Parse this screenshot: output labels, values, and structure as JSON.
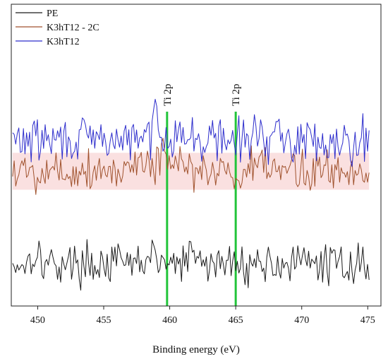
{
  "chart_data": {
    "type": "line",
    "title": "",
    "xlabel": "Binding energy (eV)",
    "ylabel": "",
    "xlim": [
      448,
      476
    ],
    "ylim": [
      0,
      100
    ],
    "y_ticks_shown": false,
    "grid": false,
    "legend_position": "top-left",
    "x_ticks": [
      450,
      455,
      460,
      465,
      470,
      475
    ],
    "x_tick_labels": [
      "450",
      "455",
      "460",
      "465",
      "470",
      "475"
    ],
    "series": [
      {
        "name": "PE",
        "color": "#1a1a1a",
        "x_start": 448.1,
        "x_end": 475.1,
        "baseline": 14,
        "noise": 3.2,
        "seed": 17,
        "features": [
          {
            "x": 449.8,
            "dy": 4
          },
          {
            "x": 458.5,
            "dy": 3
          },
          {
            "x": 461.8,
            "dy": 3
          }
        ]
      },
      {
        "name": "K3hT12 - 2C",
        "color": "#a0522d",
        "fill": "#f8d6d6",
        "x_start": 448.1,
        "x_end": 475.1,
        "baseline": 45,
        "noise": 3.6,
        "seed": 5,
        "features": [
          {
            "x": 458.0,
            "dy": 6
          },
          {
            "x": 459.5,
            "dy": 7
          },
          {
            "x": 465.2,
            "dy": -3
          }
        ]
      },
      {
        "name": "K3hT12",
        "color": "#2d2dcc",
        "x_start": 448.1,
        "x_end": 475.1,
        "baseline": 55,
        "noise": 3.6,
        "seed": 29,
        "features": [
          {
            "x": 459.0,
            "dy": 8
          },
          {
            "x": 460.5,
            "dy": 4
          },
          {
            "x": 466.8,
            "dy": 3
          }
        ]
      }
    ],
    "annotations": [
      {
        "label": "Ti 2p",
        "x": 459.8,
        "color": "#22c43a"
      },
      {
        "label": "Ti 2p",
        "x": 465.0,
        "color": "#22c43a"
      }
    ]
  }
}
